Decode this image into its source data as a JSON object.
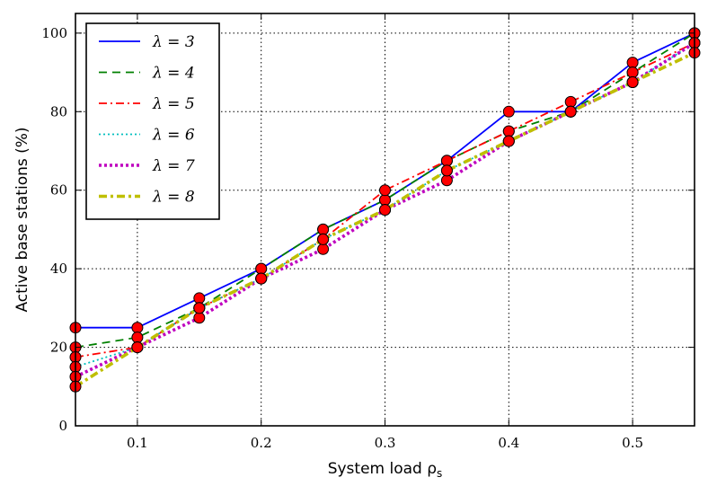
{
  "chart_data": {
    "type": "line",
    "title": "",
    "xlabel": "System load ρ",
    "xlabel_sub": "s",
    "ylabel": "Active base stations (%)",
    "xlim": [
      0.05,
      0.55
    ],
    "ylim": [
      0,
      105
    ],
    "xticks": [
      0.1,
      0.2,
      0.3,
      0.4,
      0.5
    ],
    "xtick_labels": [
      "0.1",
      "0.2",
      "0.3",
      "0.4",
      "0.5"
    ],
    "yticks": [
      0,
      20,
      40,
      60,
      80,
      100
    ],
    "ytick_labels": [
      "0",
      "20",
      "40",
      "60",
      "80",
      "100"
    ],
    "grid": true,
    "legend_position": "top-left",
    "marker_color": "#ff0000",
    "x": [
      0.05,
      0.1,
      0.15,
      0.2,
      0.25,
      0.3,
      0.35,
      0.4,
      0.45,
      0.5,
      0.55
    ],
    "series": [
      {
        "name": "λ = 3",
        "color": "#0000ff",
        "style": "solid",
        "values": [
          25,
          25,
          32.5,
          40,
          50,
          57.5,
          67.5,
          80,
          80,
          92.5,
          100
        ]
      },
      {
        "name": "λ = 4",
        "color": "#008000",
        "style": "dashed",
        "values": [
          20,
          22.5,
          30,
          40,
          50,
          57.5,
          67.5,
          75,
          80,
          90,
          100
        ]
      },
      {
        "name": "λ = 5",
        "color": "#ff0000",
        "style": "dashdot",
        "values": [
          17.5,
          20,
          30,
          37.5,
          47.5,
          60,
          67.5,
          75,
          82.5,
          90,
          97.5
        ]
      },
      {
        "name": "λ = 6",
        "color": "#00bfbf",
        "style": "dotted",
        "values": [
          15,
          20,
          30,
          37.5,
          47.5,
          55,
          65,
          72.5,
          80,
          87.5,
          97.5
        ]
      },
      {
        "name": "λ = 7",
        "color": "#bf00bf",
        "style": "dotted-thick",
        "values": [
          12.5,
          20,
          27.5,
          37.5,
          45,
          55,
          62.5,
          72.5,
          80,
          87.5,
          97.5
        ]
      },
      {
        "name": "λ = 8",
        "color": "#bfbf00",
        "style": "dashdot-thick",
        "values": [
          10,
          20,
          30,
          37.5,
          47.5,
          55,
          65,
          72.5,
          80,
          87.5,
          95
        ]
      }
    ]
  }
}
